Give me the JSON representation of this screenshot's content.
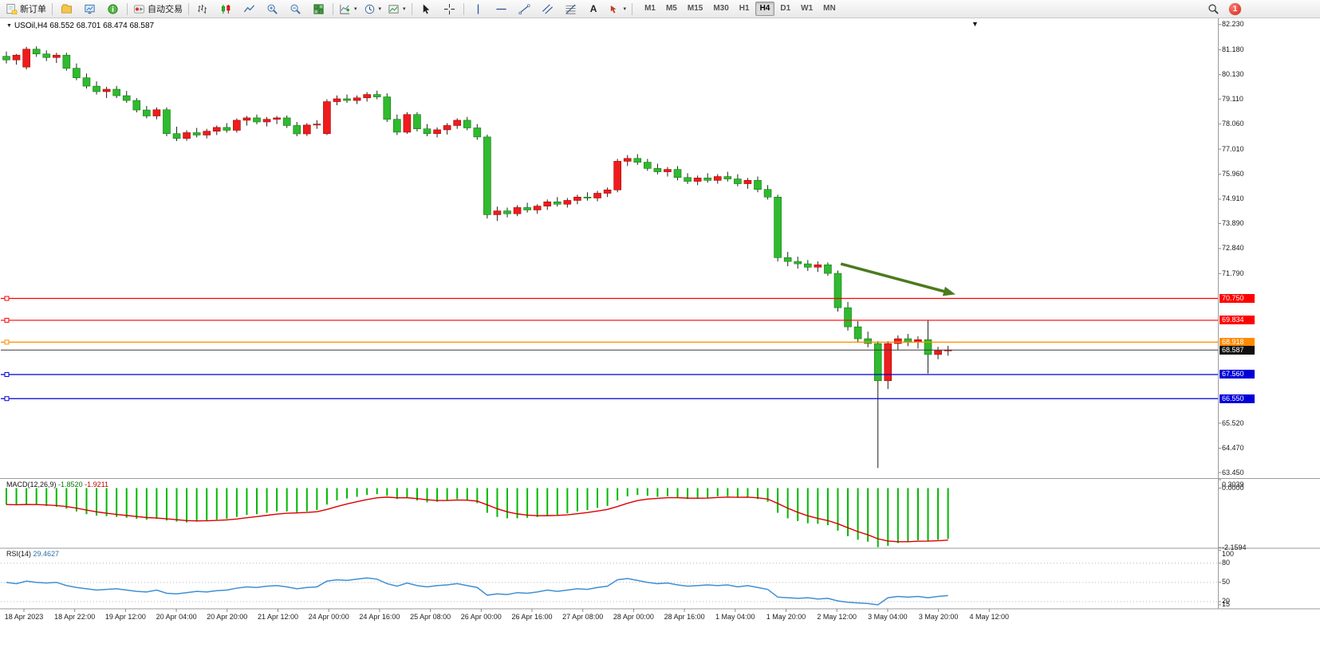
{
  "toolbar": {
    "new_order": "新订单",
    "autotrading": "自动交易",
    "text_tool": "A",
    "timeframes": [
      "M1",
      "M5",
      "M15",
      "M30",
      "H1",
      "H4",
      "D1",
      "W1",
      "MN"
    ],
    "active_timeframe": "H4",
    "notification_count": "1"
  },
  "chart": {
    "symbol": "USOil,H4",
    "ohlc": "68.552 68.701 68.474 68.587",
    "shift_marker": "▼",
    "collapse_glyph": "▼"
  },
  "chart_data": {
    "type": "candlestick",
    "symbol": "USOil",
    "timeframe": "H4",
    "price_axis": {
      "max": 82.46,
      "min": 63.25,
      "labels": [
        {
          "text": "82.230",
          "price": 82.23
        },
        {
          "text": "81.180",
          "price": 81.18
        },
        {
          "text": "80.130",
          "price": 80.13
        },
        {
          "text": "79.110",
          "price": 79.11
        },
        {
          "text": "78.060",
          "price": 78.06
        },
        {
          "text": "77.010",
          "price": 77.01
        },
        {
          "text": "75.960",
          "price": 75.96
        },
        {
          "text": "74.910",
          "price": 74.91
        },
        {
          "text": "73.890",
          "price": 73.89
        },
        {
          "text": "72.840",
          "price": 72.84
        },
        {
          "text": "71.790",
          "price": 71.79
        },
        {
          "text": "65.520",
          "price": 65.52
        },
        {
          "text": "64.470",
          "price": 64.47
        },
        {
          "text": "63.450",
          "price": 63.45
        }
      ]
    },
    "levels": [
      {
        "price": 70.75,
        "label": "70.750",
        "color": "#ff0000"
      },
      {
        "price": 69.834,
        "label": "69.834",
        "color": "#ff0000"
      },
      {
        "price": 68.918,
        "label": "68.918",
        "color": "#ff8a00"
      },
      {
        "price": 67.56,
        "label": "67.560",
        "color": "#0000d8"
      },
      {
        "price": 66.55,
        "label": "66.550",
        "color": "#0000d8"
      }
    ],
    "current_price": {
      "price": 68.587,
      "label": "68.587",
      "color": "#101010"
    },
    "trend_arrow": {
      "from_index": 83.3,
      "from_price": 72.2,
      "to_index": 94.2,
      "to_price": 70.98,
      "color": "#4c7a1e"
    },
    "candles": [
      [
        80.9,
        81.1,
        80.6,
        80.75
      ],
      [
        80.75,
        81.0,
        80.55,
        80.95
      ],
      [
        80.45,
        81.3,
        80.35,
        81.2
      ],
      [
        81.2,
        81.32,
        80.88,
        81.0
      ],
      [
        81.0,
        81.15,
        80.7,
        80.85
      ],
      [
        80.85,
        81.05,
        80.62,
        80.95
      ],
      [
        80.95,
        81.05,
        80.3,
        80.4
      ],
      [
        80.4,
        80.6,
        79.9,
        80.0
      ],
      [
        80.0,
        80.18,
        79.55,
        79.65
      ],
      [
        79.65,
        79.85,
        79.3,
        79.42
      ],
      [
        79.42,
        79.62,
        79.15,
        79.52
      ],
      [
        79.52,
        79.66,
        79.15,
        79.25
      ],
      [
        79.25,
        79.45,
        78.95,
        79.05
      ],
      [
        79.05,
        79.15,
        78.55,
        78.65
      ],
      [
        78.65,
        78.82,
        78.3,
        78.4
      ],
      [
        78.4,
        78.76,
        78.26,
        78.66
      ],
      [
        78.66,
        78.76,
        77.55,
        77.66
      ],
      [
        77.66,
        77.95,
        77.35,
        77.46
      ],
      [
        77.46,
        77.8,
        77.36,
        77.7
      ],
      [
        77.7,
        77.9,
        77.5,
        77.6
      ],
      [
        77.6,
        77.86,
        77.46,
        77.76
      ],
      [
        77.76,
        78.0,
        77.6,
        77.92
      ],
      [
        77.92,
        78.1,
        77.7,
        77.8
      ],
      [
        77.8,
        78.3,
        77.7,
        78.22
      ],
      [
        78.22,
        78.4,
        78.0,
        78.32
      ],
      [
        78.32,
        78.46,
        78.05,
        78.15
      ],
      [
        78.15,
        78.36,
        77.96,
        78.26
      ],
      [
        78.26,
        78.4,
        78.06,
        78.32
      ],
      [
        78.32,
        78.42,
        77.9,
        78.0
      ],
      [
        78.0,
        78.15,
        77.55,
        77.65
      ],
      [
        77.65,
        78.1,
        77.56,
        78.02
      ],
      [
        78.02,
        78.22,
        77.86,
        78.06
      ],
      [
        77.66,
        79.1,
        77.6,
        79.0
      ],
      [
        79.0,
        79.26,
        78.85,
        79.12
      ],
      [
        79.12,
        79.3,
        78.95,
        79.05
      ],
      [
        79.05,
        79.26,
        78.9,
        79.16
      ],
      [
        79.16,
        79.4,
        79.0,
        79.3
      ],
      [
        79.3,
        79.46,
        79.1,
        79.2
      ],
      [
        79.2,
        79.35,
        78.15,
        78.26
      ],
      [
        78.26,
        78.46,
        77.6,
        77.72
      ],
      [
        77.72,
        78.56,
        77.65,
        78.46
      ],
      [
        78.46,
        78.56,
        77.75,
        77.86
      ],
      [
        77.86,
        78.06,
        77.55,
        77.66
      ],
      [
        77.66,
        77.92,
        77.5,
        77.82
      ],
      [
        77.82,
        78.1,
        77.62,
        78.0
      ],
      [
        78.0,
        78.3,
        77.86,
        78.22
      ],
      [
        78.22,
        78.36,
        77.8,
        77.9
      ],
      [
        77.9,
        78.06,
        77.4,
        77.52
      ],
      [
        77.52,
        77.62,
        74.1,
        74.26
      ],
      [
        74.26,
        74.6,
        74.0,
        74.42
      ],
      [
        74.42,
        74.56,
        74.15,
        74.3
      ],
      [
        74.3,
        74.66,
        74.2,
        74.56
      ],
      [
        74.56,
        74.76,
        74.35,
        74.46
      ],
      [
        74.46,
        74.7,
        74.3,
        74.62
      ],
      [
        74.62,
        74.9,
        74.46,
        74.8
      ],
      [
        74.8,
        75.0,
        74.6,
        74.7
      ],
      [
        74.7,
        74.96,
        74.56,
        74.86
      ],
      [
        74.86,
        75.1,
        74.7,
        75.0
      ],
      [
        75.0,
        75.2,
        74.85,
        74.96
      ],
      [
        74.96,
        75.26,
        74.82,
        75.16
      ],
      [
        75.16,
        75.4,
        75.0,
        75.3
      ],
      [
        75.3,
        76.6,
        75.2,
        76.5
      ],
      [
        76.5,
        76.76,
        76.3,
        76.62
      ],
      [
        76.62,
        76.8,
        76.35,
        76.46
      ],
      [
        76.46,
        76.6,
        76.1,
        76.2
      ],
      [
        76.2,
        76.4,
        75.95,
        76.06
      ],
      [
        76.06,
        76.26,
        75.86,
        76.16
      ],
      [
        76.16,
        76.3,
        75.7,
        75.82
      ],
      [
        75.82,
        76.0,
        75.55,
        75.66
      ],
      [
        75.66,
        75.9,
        75.5,
        75.8
      ],
      [
        75.8,
        76.0,
        75.6,
        75.7
      ],
      [
        75.7,
        75.96,
        75.56,
        75.86
      ],
      [
        75.86,
        76.06,
        75.65,
        75.76
      ],
      [
        75.76,
        75.96,
        75.45,
        75.56
      ],
      [
        75.56,
        75.8,
        75.35,
        75.7
      ],
      [
        75.7,
        75.86,
        75.2,
        75.32
      ],
      [
        75.32,
        75.5,
        74.9,
        75.0
      ],
      [
        75.0,
        75.1,
        72.3,
        72.46
      ],
      [
        72.46,
        72.7,
        72.1,
        72.3
      ],
      [
        72.3,
        72.5,
        72.0,
        72.2
      ],
      [
        72.2,
        72.36,
        71.9,
        72.06
      ],
      [
        72.06,
        72.3,
        71.86,
        72.16
      ],
      [
        72.16,
        72.26,
        71.7,
        71.8
      ],
      [
        71.8,
        71.92,
        70.2,
        70.36
      ],
      [
        70.36,
        70.6,
        69.4,
        69.56
      ],
      [
        69.56,
        69.8,
        68.9,
        69.06
      ],
      [
        69.06,
        69.36,
        68.7,
        68.86
      ],
      [
        68.86,
        68.96,
        63.64,
        67.3
      ],
      [
        67.3,
        68.96,
        66.95,
        68.86
      ],
      [
        68.86,
        69.2,
        68.6,
        69.06
      ],
      [
        69.06,
        69.26,
        68.75,
        68.92
      ],
      [
        68.92,
        69.16,
        68.65,
        69.02
      ],
      [
        69.02,
        69.83,
        67.6,
        68.4
      ],
      [
        68.4,
        68.72,
        68.2,
        68.56
      ],
      [
        68.56,
        68.76,
        68.35,
        68.59
      ]
    ],
    "macd": {
      "name": "MACD(12,26,9)",
      "value_main": "-1.8520",
      "value_signal": "-1.9211",
      "axis_max": 0.3039,
      "axis_min": -2.1594,
      "axis_labels": [
        {
          "text": "0.3039",
          "value": 0.3039
        },
        {
          "text": "0.0000",
          "value": 0
        },
        {
          "text": "-2.1594",
          "value": -2.1594
        }
      ],
      "histogram_color": "#00b800",
      "signal_color": "#dd0000",
      "values": [
        -0.6,
        -0.62,
        -0.58,
        -0.6,
        -0.65,
        -0.68,
        -0.75,
        -0.85,
        -0.95,
        -1.0,
        -1.02,
        -1.05,
        -1.08,
        -1.12,
        -1.15,
        -1.12,
        -1.18,
        -1.22,
        -1.25,
        -1.22,
        -1.18,
        -1.15,
        -1.12,
        -1.05,
        -0.98,
        -0.95,
        -0.9,
        -0.85,
        -0.85,
        -0.88,
        -0.85,
        -0.8,
        -0.6,
        -0.45,
        -0.38,
        -0.32,
        -0.25,
        -0.22,
        -0.28,
        -0.4,
        -0.35,
        -0.45,
        -0.52,
        -0.5,
        -0.45,
        -0.4,
        -0.45,
        -0.55,
        -0.9,
        -1.05,
        -1.1,
        -1.1,
        -1.08,
        -1.05,
        -1.0,
        -0.98,
        -0.92,
        -0.85,
        -0.8,
        -0.72,
        -0.65,
        -0.45,
        -0.3,
        -0.25,
        -0.28,
        -0.32,
        -0.3,
        -0.35,
        -0.4,
        -0.38,
        -0.35,
        -0.3,
        -0.3,
        -0.35,
        -0.32,
        -0.4,
        -0.5,
        -0.9,
        -1.1,
        -1.2,
        -1.28,
        -1.3,
        -1.35,
        -1.55,
        -1.75,
        -1.88,
        -1.95,
        -2.15,
        -2.1,
        -2.0,
        -1.95,
        -1.9,
        -1.92,
        -1.88,
        -1.85
      ]
    },
    "rsi": {
      "name": "RSI(14)",
      "value": "29.4627",
      "axis_max": 102,
      "axis_min": 10,
      "levels": [
        80,
        50,
        20
      ],
      "axis_labels": [
        {
          "text": "100",
          "value": 100
        },
        {
          "text": "80",
          "value": 80
        },
        {
          "text": "50",
          "value": 50
        },
        {
          "text": "20",
          "value": 20
        },
        {
          "text": "15",
          "value": 15
        }
      ],
      "line_color": "#3f8fd4",
      "values": [
        50,
        48,
        52,
        50,
        49,
        50,
        45,
        42,
        40,
        38,
        39,
        40,
        38,
        36,
        35,
        38,
        33,
        32,
        34,
        36,
        35,
        37,
        38,
        41,
        43,
        42,
        44,
        45,
        43,
        40,
        42,
        43,
        52,
        54,
        53,
        55,
        57,
        55,
        48,
        44,
        49,
        45,
        43,
        45,
        46,
        48,
        45,
        42,
        30,
        32,
        31,
        34,
        33,
        35,
        38,
        36,
        38,
        40,
        39,
        42,
        44,
        54,
        56,
        53,
        50,
        48,
        49,
        46,
        44,
        45,
        46,
        45,
        46,
        43,
        45,
        42,
        39,
        27,
        26,
        25,
        26,
        24,
        25,
        21,
        19,
        18,
        17,
        15,
        26,
        28,
        27,
        28,
        26,
        28,
        29.46
      ]
    },
    "time_labels": [
      "18 Apr 2023",
      "18 Apr 22:00",
      "19 Apr 12:00",
      "20 Apr 04:00",
      "20 Apr 20:00",
      "21 Apr 12:00",
      "24 Apr 00:00",
      "24 Apr 16:00",
      "25 Apr 08:00",
      "26 Apr 00:00",
      "26 Apr 16:00",
      "27 Apr 08:00",
      "28 Apr 00:00",
      "28 Apr 16:00",
      "1 May 04:00",
      "1 May 20:00",
      "2 May 12:00",
      "3 May 04:00",
      "3 May 20:00",
      "4 May 12:00"
    ],
    "colors": {
      "bull": "#ee1c1c",
      "bear": "#2fba2f",
      "wick": "#222222",
      "background": "#ffffff"
    }
  }
}
